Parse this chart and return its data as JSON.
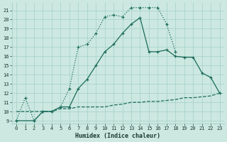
{
  "xlabel": "Humidex (Indice chaleur)",
  "bg_color": "#cce8e0",
  "grid_color": "#aad4cc",
  "line_color": "#1a6b5a",
  "xlim": [
    -0.5,
    23.5
  ],
  "ylim": [
    8.7,
    21.8
  ],
  "yticks": [
    9,
    10,
    11,
    12,
    13,
    14,
    15,
    16,
    17,
    18,
    19,
    20,
    21
  ],
  "xticks": [
    0,
    1,
    2,
    3,
    4,
    5,
    6,
    7,
    8,
    9,
    10,
    11,
    12,
    13,
    14,
    15,
    16,
    17,
    18,
    19,
    20,
    21,
    22,
    23
  ],
  "curve1_x": [
    0,
    1,
    2,
    3,
    4,
    5,
    6,
    7,
    8,
    9,
    10,
    11,
    12,
    13,
    14,
    15,
    16,
    17,
    18
  ],
  "curve1_y": [
    9,
    11.5,
    9,
    10,
    10,
    10.5,
    12.5,
    17,
    17.3,
    18.5,
    20.3,
    20.5,
    20.3,
    21.3,
    21.3,
    21.3,
    21.3,
    19.5,
    16.5
  ],
  "curve2_x": [
    0,
    2,
    3,
    4,
    5,
    6,
    7,
    8,
    9,
    10,
    11,
    12,
    13,
    14,
    15,
    16,
    17,
    18,
    19,
    20,
    21,
    22,
    23
  ],
  "curve2_y": [
    9,
    9,
    10,
    10,
    10.5,
    10.5,
    12.5,
    13.5,
    15,
    16.5,
    17.3,
    18.5,
    19.5,
    20.2,
    16.5,
    16.5,
    16.7,
    16,
    15.9,
    15.9,
    14.2,
    13.7,
    12
  ],
  "curve3_x": [
    0,
    4,
    5,
    6,
    7,
    8,
    9,
    10,
    11,
    12,
    13,
    14,
    15,
    16,
    17,
    18,
    19,
    20,
    21,
    22,
    23
  ],
  "curve3_y": [
    10,
    10,
    10.3,
    10.3,
    10.5,
    10.5,
    10.5,
    10.5,
    10.7,
    10.8,
    11.0,
    11.0,
    11.1,
    11.1,
    11.2,
    11.3,
    11.5,
    11.5,
    11.6,
    11.7,
    12
  ]
}
